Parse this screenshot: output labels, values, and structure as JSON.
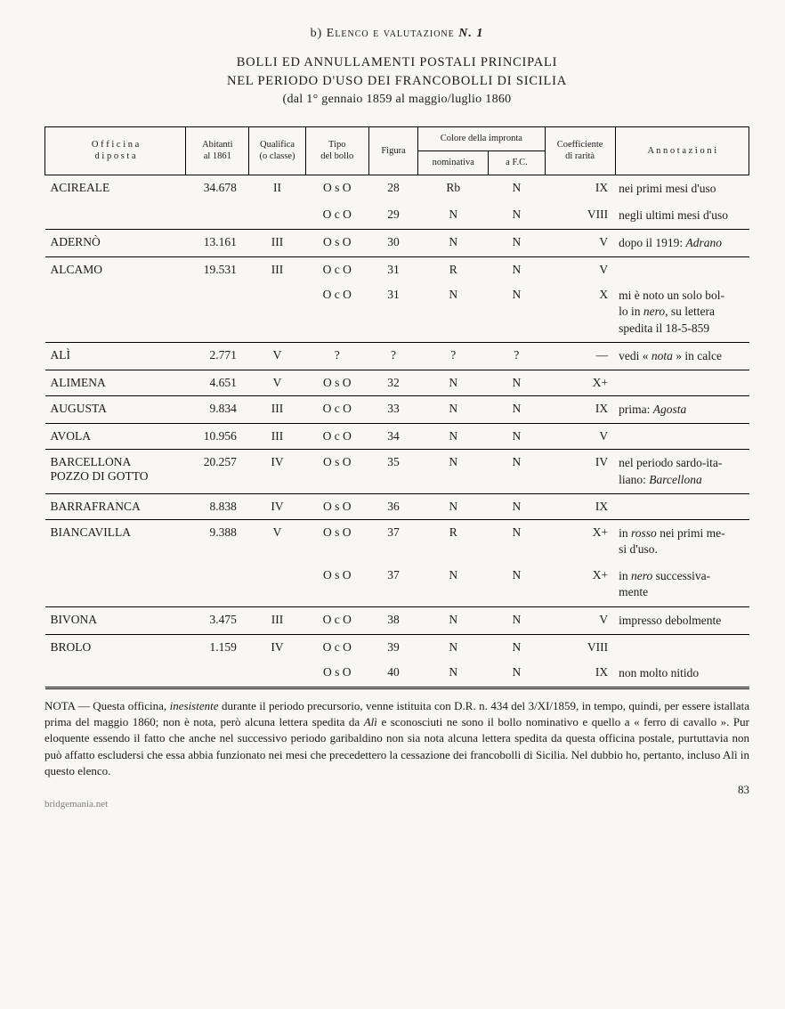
{
  "header": {
    "section_prefix": "b) ",
    "section_label": "Elenco e valutazione",
    "section_num_label": " N. 1",
    "title_line1": "BOLLI ED ANNULLAMENTI POSTALI PRINCIPALI",
    "title_line2": "NEL PERIODO D'USO DEI FRANCOBOLLI DI SICILIA",
    "date_line": "(dal 1° gennaio 1859 al maggio/luglio 1860"
  },
  "columns": {
    "office": "O f f i c i n a\nd i   p o s t a",
    "abitanti": "Abitanti\nal 1861",
    "qualifica": "Qualifica\n(o classe)",
    "tipo": "Tipo\ndel bollo",
    "figura": "Figura",
    "colore_group": "Colore della impronta",
    "nominativa": "nominativa",
    "afc": "a F.C.",
    "coeff": "Coefficiente\ndi rarità",
    "annot": "A n n o t a z i o n i"
  },
  "rows": [
    {
      "office": "ACIREALE",
      "abitanti": "34.678",
      "qual": "II",
      "tipo": "O s O",
      "fig": "28",
      "nom": "Rb",
      "afc": "N",
      "coef": "IX",
      "ann": "nei primi mesi d'uso"
    },
    {
      "office": "",
      "abitanti": "",
      "qual": "",
      "tipo": "O c O",
      "fig": "29",
      "nom": "N",
      "afc": "N",
      "coef": "VIII",
      "ann": "negli ultimi mesi d'uso",
      "sep": true
    },
    {
      "office": "ADERNÒ",
      "abitanti": "13.161",
      "qual": "III",
      "tipo": "O s O",
      "fig": "30",
      "nom": "N",
      "afc": "N",
      "coef": "V",
      "ann_html": "dopo il 1919: <span class='it'>Adrano</span>",
      "sep": true
    },
    {
      "office": "ALCAMO",
      "abitanti": "19.531",
      "qual": "III",
      "tipo": "O c O",
      "fig": "31",
      "nom": "R",
      "afc": "N",
      "coef": "V",
      "ann": ""
    },
    {
      "office": "",
      "abitanti": "",
      "qual": "",
      "tipo": "O c O",
      "fig": "31",
      "nom": "N",
      "afc": "N",
      "coef": "X",
      "ann_html": "mi è noto un solo bol-<br>lo in <span class='it'>nero</span>, su lettera<br>spedita il 18-5-859",
      "sep": true
    },
    {
      "office": "ALÌ",
      "abitanti": "2.771",
      "qual": "V",
      "tipo": "?",
      "fig": "?",
      "nom": "?",
      "afc": "?",
      "coef": "—",
      "ann_html": "vedi « <span class='it'>nota</span> » in calce",
      "sep": true
    },
    {
      "office": "ALIMENA",
      "abitanti": "4.651",
      "qual": "V",
      "tipo": "O s O",
      "fig": "32",
      "nom": "N",
      "afc": "N",
      "coef": "X+",
      "ann": "",
      "sep": true
    },
    {
      "office": "AUGUSTA",
      "abitanti": "9.834",
      "qual": "III",
      "tipo": "O c O",
      "fig": "33",
      "nom": "N",
      "afc": "N",
      "coef": "IX",
      "ann_html": "prima: <span class='it'>Agosta</span>",
      "sep": true
    },
    {
      "office": "AVOLA",
      "abitanti": "10.956",
      "qual": "III",
      "tipo": "O c O",
      "fig": "34",
      "nom": "N",
      "afc": "N",
      "coef": "V",
      "ann": "",
      "sep": true
    },
    {
      "office": "BARCELLONA\nPOZZO DI GOTTO",
      "abitanti": "20.257",
      "qual": "IV",
      "tipo": "O s O",
      "fig": "35",
      "nom": "N",
      "afc": "N",
      "coef": "IV",
      "ann_html": "nel periodo sardo-ita-<br>liano: <span class='it'>Barcellona</span>",
      "sep": true
    },
    {
      "office": "BARRAFRANCA",
      "abitanti": "8.838",
      "qual": "IV",
      "tipo": "O s O",
      "fig": "36",
      "nom": "N",
      "afc": "N",
      "coef": "IX",
      "ann": "",
      "sep": true
    },
    {
      "office": "BIANCAVILLA",
      "abitanti": "9.388",
      "qual": "V",
      "tipo": "O s O",
      "fig": "37",
      "nom": "R",
      "afc": "N",
      "coef": "X+",
      "ann_html": "in <span class='it'>rosso</span> nei primi me-<br>si d'uso."
    },
    {
      "office": "",
      "abitanti": "",
      "qual": "",
      "tipo": "O s O",
      "fig": "37",
      "nom": "N",
      "afc": "N",
      "coef": "X+",
      "ann_html": "in <span class='it'>nero</span> successiva-<br>mente",
      "sep": true
    },
    {
      "office": "BIVONA",
      "abitanti": "3.475",
      "qual": "III",
      "tipo": "O c O",
      "fig": "38",
      "nom": "N",
      "afc": "N",
      "coef": "V",
      "ann": "impresso debolmente",
      "sep": true
    },
    {
      "office": "BROLO",
      "abitanti": "1.159",
      "qual": "IV",
      "tipo": "O c O",
      "fig": "39",
      "nom": "N",
      "afc": "N",
      "coef": "VIII",
      "ann": ""
    },
    {
      "office": "",
      "abitanti": "",
      "qual": "",
      "tipo": "O s O",
      "fig": "40",
      "nom": "N",
      "afc": "N",
      "coef": "IX",
      "ann": "non molto nitido",
      "sep": true,
      "dbl": true
    }
  ],
  "footnote_html": "NOTA — Questa officina, <span class='it'>inesistente</span> durante il periodo precursorio, venne istituita con D.R. n. 434 del 3/XI/1859, in tempo, quindi, per essere istallata prima del maggio 1860; non è nota, però alcuna lettera spedita da <span class='it'>Alì</span> e sconosciuti ne sono il bollo nominativo e quello a « ferro di cavallo ». Pur eloquente essendo il fatto che anche nel successivo periodo garibaldino non sia nota alcuna lettera spedita da questa officina postale, purtuttavia non può affatto escludersi che essa abbia funzionato nei mesi che precedettero la cessazione dei francobolli di Sicilia. Nel dubbio ho, pertanto, incluso Alì in questo elenco.",
  "page_number": "83",
  "watermark": "bridgemania.net",
  "style": {
    "background": "#f9f7f2",
    "text": "#1a1a1a",
    "border": "#000000",
    "col_widths_pct": [
      20,
      9,
      8,
      9,
      7,
      10,
      8,
      10,
      19
    ]
  }
}
